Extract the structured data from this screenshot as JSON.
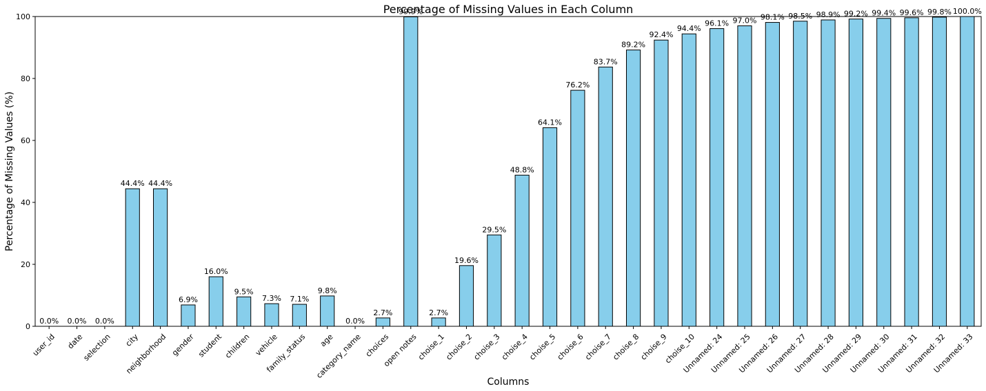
{
  "chart_data": {
    "type": "bar",
    "title": "Percentage of Missing Values in Each Column",
    "xlabel": "Columns",
    "ylabel": "Percentage of Missing Values (%)",
    "ylim": [
      0,
      100
    ],
    "yticks": [
      0,
      20,
      40,
      60,
      80,
      100
    ],
    "grid": false,
    "legend": "none",
    "bar_color": "#87ceeb",
    "edge_color": "#000000",
    "categories": [
      "user_id",
      "date",
      "selection",
      "city",
      "neighborhood",
      "gender",
      "student",
      "children",
      "vehicle",
      "family_status",
      "age",
      "category_name",
      "choices",
      "open notes",
      "choise_1",
      "choise_2",
      "choise_3",
      "choise_4",
      "choise_5",
      "choise_6",
      "choise_7",
      "choise_8",
      "choise_9",
      "choise_10",
      "Unnamed: 24",
      "Unnamed: 25",
      "Unnamed: 26",
      "Unnamed: 27",
      "Unnamed: 28",
      "Unnamed: 29",
      "Unnamed: 30",
      "Unnamed: 31",
      "Unnamed: 32",
      "Unnamed: 33"
    ],
    "values": [
      0.0,
      0.0,
      0.0,
      44.4,
      44.4,
      6.9,
      16.0,
      9.5,
      7.3,
      7.1,
      9.8,
      0.0,
      2.7,
      99.9,
      2.7,
      19.6,
      29.5,
      48.8,
      64.1,
      76.2,
      83.7,
      89.2,
      92.4,
      94.4,
      96.1,
      97.0,
      98.1,
      98.5,
      98.9,
      99.2,
      99.4,
      99.6,
      99.8,
      100.0
    ],
    "data_labels": [
      "0.0%",
      "0.0%",
      "0.0%",
      "44.4%",
      "44.4%",
      "6.9%",
      "16.0%",
      "9.5%",
      "7.3%",
      "7.1%",
      "9.8%",
      "0.0%",
      "2.7%",
      "99.9%",
      "2.7%",
      "19.6%",
      "29.5%",
      "48.8%",
      "64.1%",
      "76.2%",
      "83.7%",
      "89.2%",
      "92.4%",
      "94.4%",
      "96.1%",
      "97.0%",
      "98.1%",
      "98.5%",
      "98.9%",
      "99.2%",
      "99.4%",
      "99.6%",
      "99.8%",
      "100.0%"
    ]
  }
}
